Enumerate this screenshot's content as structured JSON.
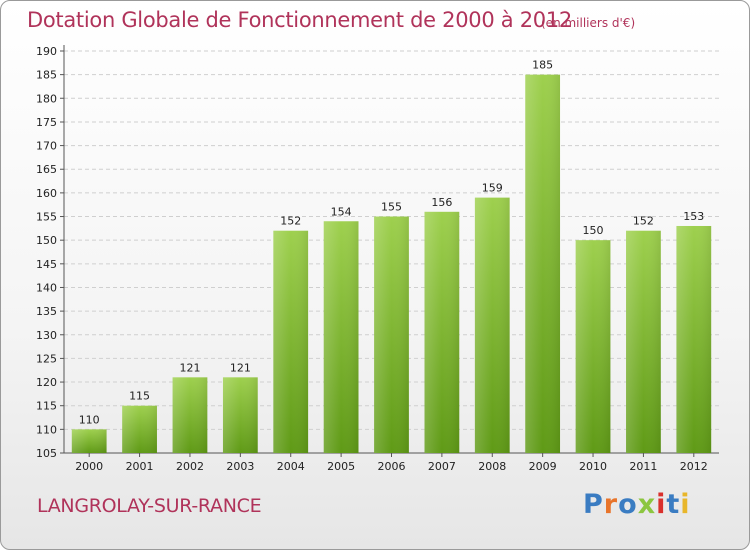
{
  "header": {
    "title": "Dotation Globale de Fonctionnement de 2000 à 2012",
    "subtitle": "(en milliers d'€)"
  },
  "footer": {
    "commune": "LANGROLAY-SUR-RANCE",
    "logo": "Proxiti",
    "logo_colors": [
      "#3a7cc2",
      "#e8742a",
      "#3a7cc2",
      "#8cc63f",
      "#d9302c",
      "#3a7cc2",
      "#e8b62a"
    ]
  },
  "colors": {
    "title": "#b0335a",
    "bar_light": "#9ed04e",
    "bar_dark": "#5f9a16",
    "grid": "#cfcfcf",
    "axis_text": "#222222"
  },
  "chart_data": {
    "type": "bar",
    "title": "Dotation Globale de Fonctionnement de 2000 à 2012",
    "subtitle": "(en milliers d'€)",
    "categories": [
      "2000",
      "2001",
      "2002",
      "2003",
      "2004",
      "2005",
      "2006",
      "2007",
      "2008",
      "2009",
      "2010",
      "2011",
      "2012"
    ],
    "values": [
      110,
      115,
      121,
      121,
      152,
      154,
      155,
      156,
      159,
      185,
      150,
      152,
      153
    ],
    "ylim": [
      105,
      190
    ],
    "ytick_step": 5,
    "grid": true,
    "data_labels": true,
    "xlabel": "",
    "ylabel": ""
  }
}
